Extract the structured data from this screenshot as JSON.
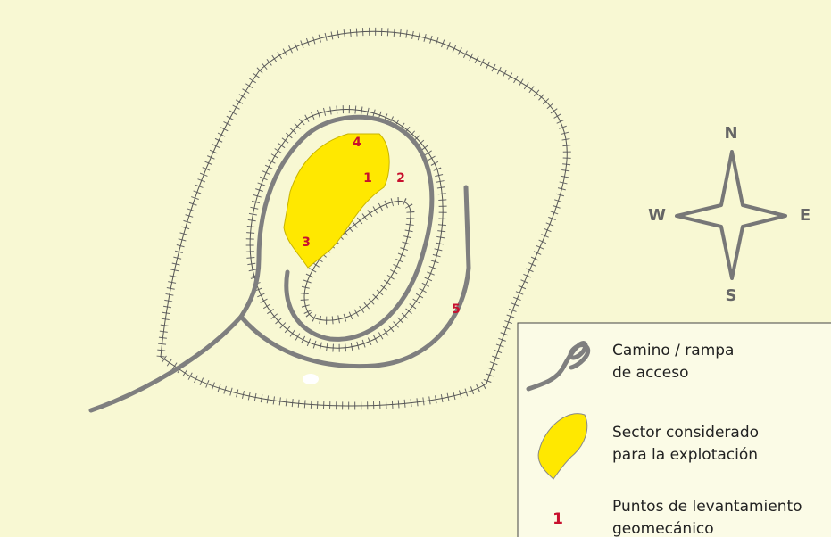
{
  "compass": {
    "n": "N",
    "w": "W",
    "e": "E",
    "s": "S"
  },
  "points": [
    {
      "label": "4"
    },
    {
      "label": "1"
    },
    {
      "label": "2"
    },
    {
      "label": "3"
    },
    {
      "label": "5"
    }
  ],
  "legend": [
    {
      "lines": [
        "Camino / rampa",
        "de acceso"
      ]
    },
    {
      "lines": [
        "Sector considerado",
        "para la explotación"
      ]
    },
    {
      "symbol": "1",
      "lines": [
        "Puntos de levantamiento",
        "geomecánico"
      ]
    }
  ]
}
